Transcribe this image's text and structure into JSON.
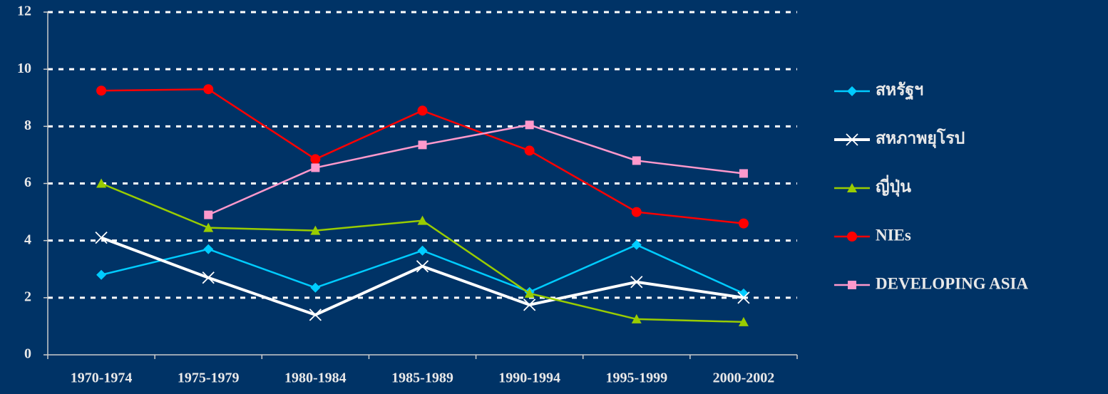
{
  "chart_data": {
    "type": "line",
    "categories": [
      "1970-1974",
      "1975-1979",
      "1980-1984",
      "1985-1989",
      "1990-1994",
      "1995-1999",
      "2000-2002"
    ],
    "series": [
      {
        "name": "สหรัฐฯ",
        "color": "#00ccff",
        "marker": "diamond",
        "values": [
          2.8,
          3.7,
          2.35,
          3.65,
          2.2,
          3.85,
          2.15
        ]
      },
      {
        "name": "สหภาพยุโรป",
        "color": "#ffffff",
        "marker": "x",
        "values": [
          4.1,
          2.7,
          1.4,
          3.1,
          1.75,
          2.55,
          2.0
        ]
      },
      {
        "name": "ญี่ปุ่น",
        "color": "#99cc00",
        "marker": "triangle",
        "values": [
          6.0,
          4.45,
          4.35,
          4.7,
          2.15,
          1.25,
          1.15
        ]
      },
      {
        "name": "NIEs",
        "color": "#ff0000",
        "marker": "circle",
        "values": [
          9.25,
          9.3,
          6.85,
          8.55,
          7.15,
          5.0,
          4.6
        ]
      },
      {
        "name": "DEVELOPING ASIA",
        "color": "#ff99cc",
        "marker": "square",
        "values": [
          null,
          4.9,
          6.55,
          7.35,
          8.05,
          6.8,
          6.35
        ]
      }
    ],
    "ylim": [
      0,
      12
    ],
    "yticks": [
      0,
      2,
      4,
      6,
      8,
      10,
      12
    ],
    "grid": true,
    "legend": "right"
  }
}
